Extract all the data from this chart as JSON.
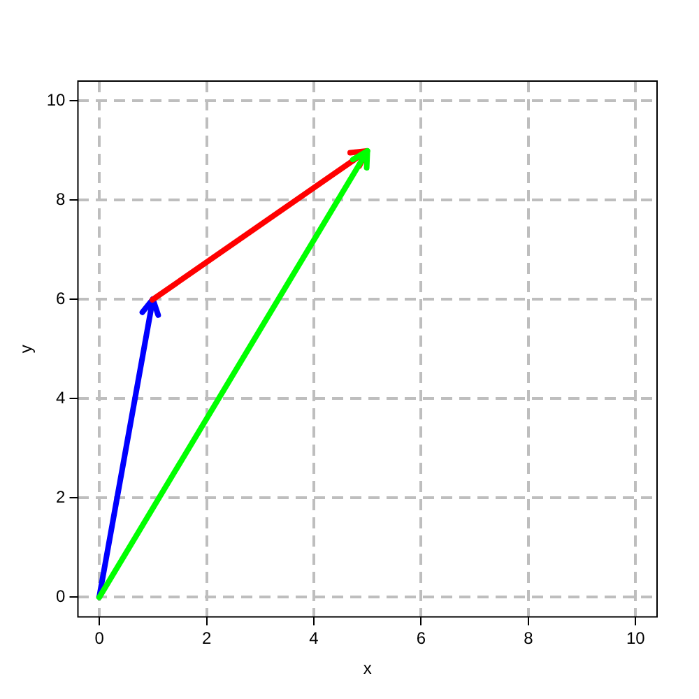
{
  "chart_data": {
    "type": "line",
    "xlabel": "x",
    "ylabel": "y",
    "xlim": [
      -0.4,
      10.4
    ],
    "ylim": [
      -0.4,
      10.4
    ],
    "xticks": [
      0,
      2,
      4,
      6,
      8,
      10
    ],
    "yticks": [
      0,
      2,
      4,
      6,
      8,
      10
    ],
    "grid": true,
    "legend": false,
    "line_style": "solid",
    "series": [
      {
        "color": "#0000ff",
        "x": [
          0,
          1
        ],
        "values": [
          0,
          6
        ]
      },
      {
        "color": "#ff0000",
        "x": [
          1,
          5
        ],
        "values": [
          6,
          9
        ]
      },
      {
        "color": "#00ff00",
        "x": [
          0,
          5
        ],
        "values": [
          0,
          9
        ]
      }
    ]
  }
}
